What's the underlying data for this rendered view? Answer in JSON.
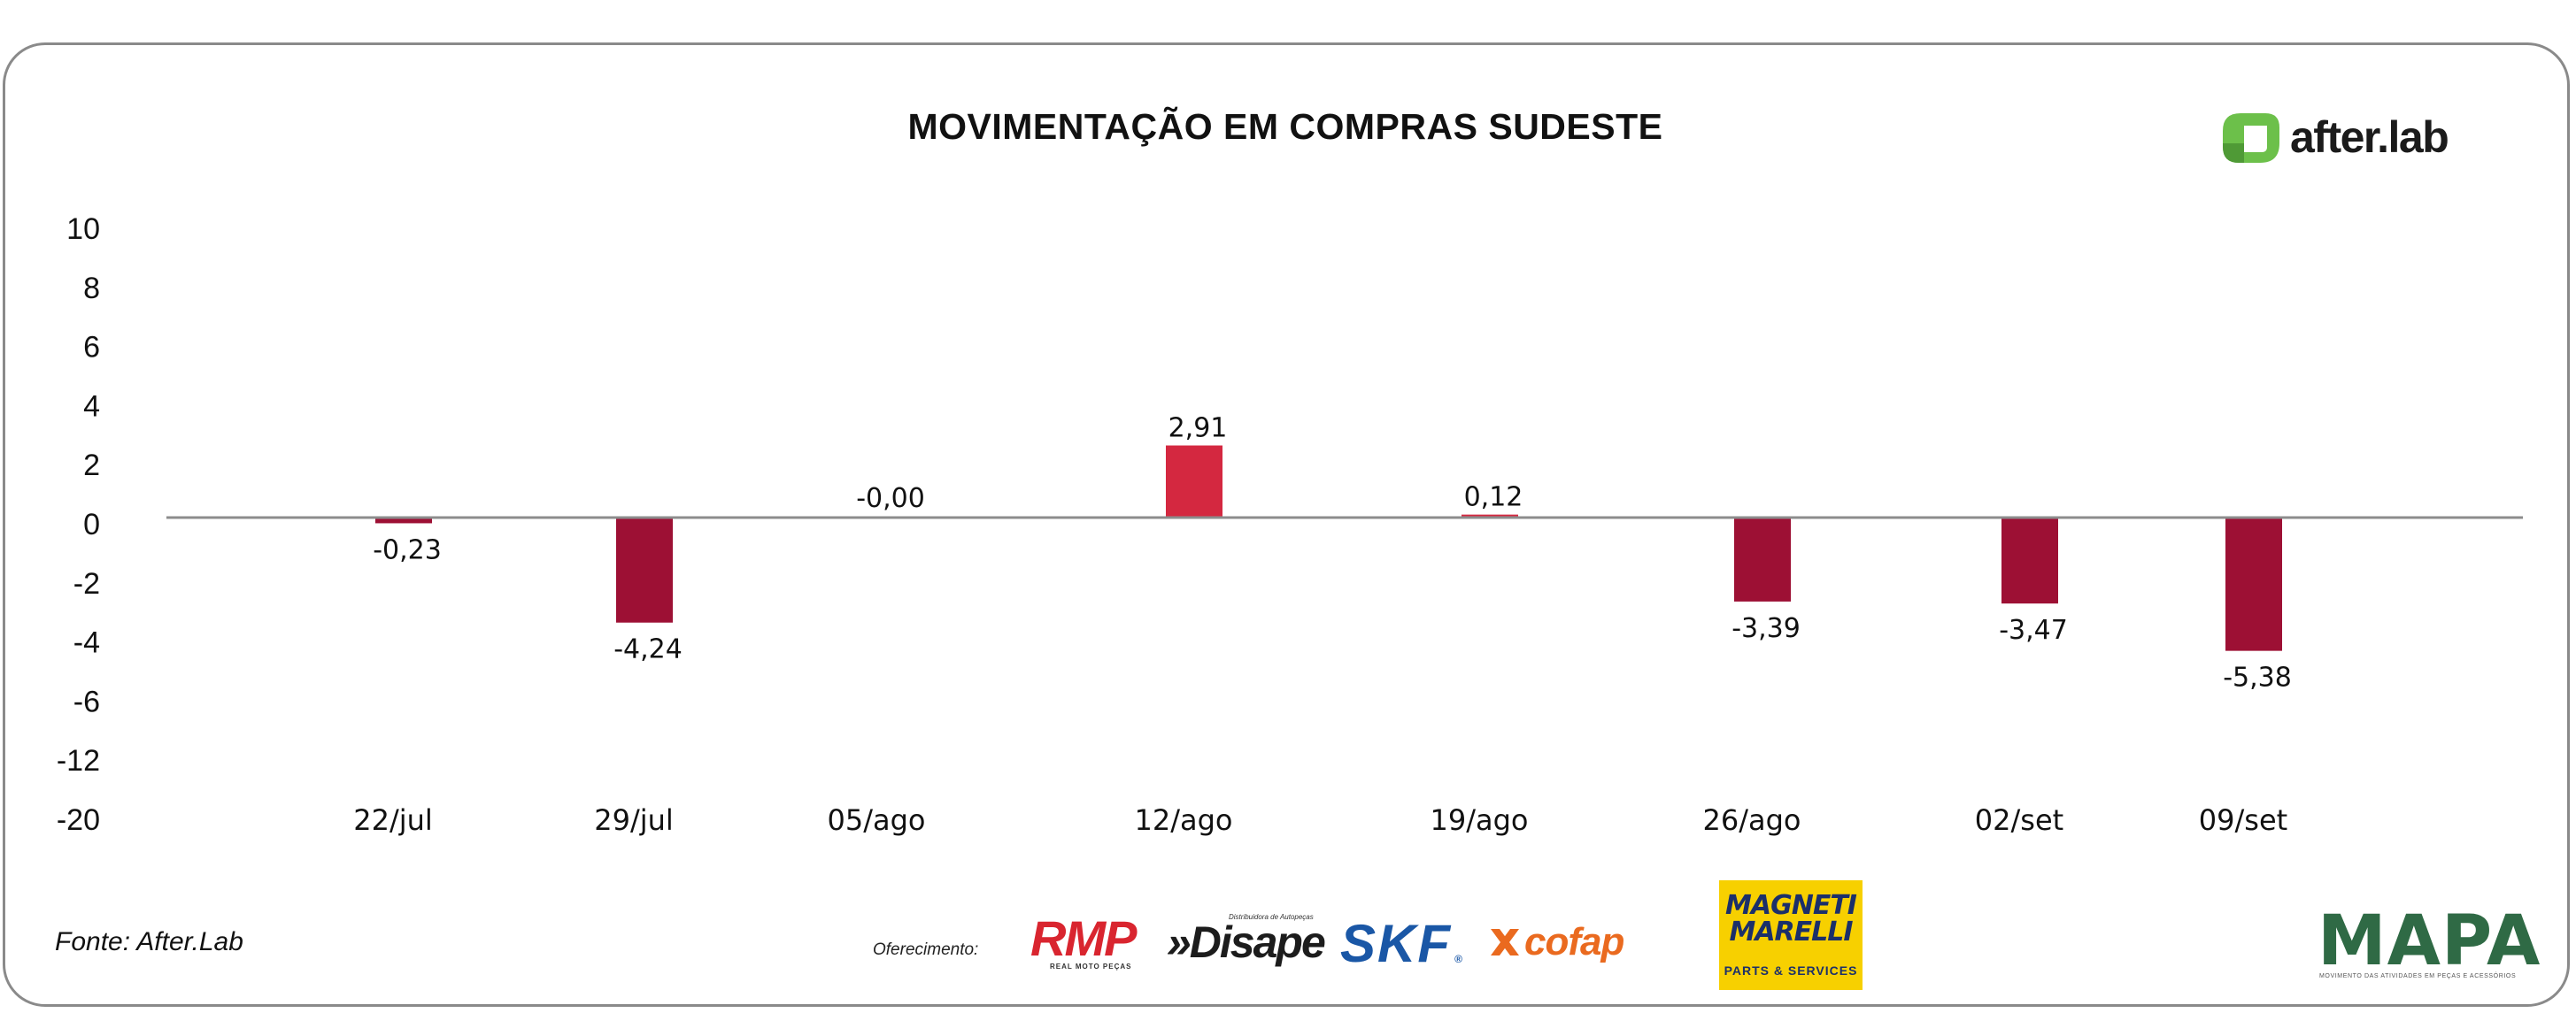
{
  "chart_data": {
    "type": "bar",
    "title": "MOVIMENTAÇÃO EM COMPRAS SUDESTE",
    "categories": [
      "22/jul",
      "29/jul",
      "05/ago",
      "12/ago",
      "19/ago",
      "26/ago",
      "02/set",
      "09/set"
    ],
    "values": [
      -0.23,
      -4.24,
      -0.0,
      2.91,
      0.12,
      -3.39,
      -3.47,
      -5.38
    ],
    "data_labels": [
      "-0,23",
      "-4,24",
      "-0,00",
      "2,91",
      "0,12",
      "-3,39",
      "-3,47",
      "-5,38"
    ],
    "y_ticks": [
      "10",
      "8",
      "6",
      "4",
      "2",
      "0",
      "-2",
      "-4",
      "-6",
      "-12",
      "-20"
    ],
    "xlabel": "",
    "ylabel": "",
    "grid": false,
    "legend": "none"
  },
  "colors": {
    "positive_bar": "#d42840",
    "negative_bar": "#9d1034",
    "zero_line": "#8c8c8c",
    "afterlab_green": "#6cc04a"
  },
  "footer": {
    "source": "Fonte: After.Lab",
    "offer_label": "Oferecimento:"
  },
  "logos": {
    "afterlab": "after.lab",
    "rmp": "RMP",
    "rmp_sub": "REAL MOTO PEÇAS",
    "disape": "»Disape",
    "disape_sub": "Distribuidora de Autopeças",
    "skf": "SKF",
    "skf_mark": "®",
    "cofap": "cofap",
    "magneti_line1": "MAGNETI",
    "magneti_line2": "MARELLI",
    "magneti_sub": "PARTS & SERVICES",
    "mapa": "MAPA",
    "mapa_sub": "MOVIMENTO DAS ATIVIDADES EM PEÇAS E ACESSÓRIOS"
  }
}
